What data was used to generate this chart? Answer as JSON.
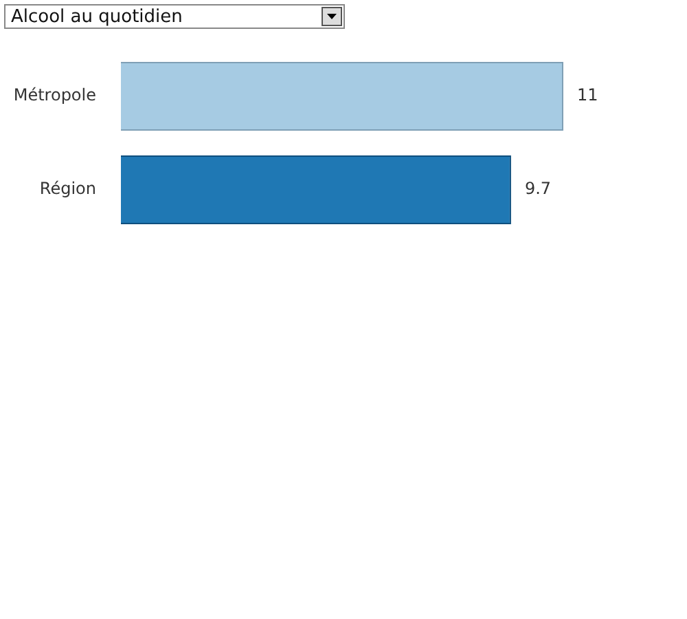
{
  "chart_data": {
    "type": "bar",
    "orientation": "horizontal",
    "title": "Alcool au quotidien",
    "categories": [
      "Métropole",
      "Région"
    ],
    "values": [
      11,
      9.7
    ],
    "colors": [
      "#a6cbe3",
      "#1f78b4"
    ],
    "data_labels": true,
    "legend": false
  }
}
